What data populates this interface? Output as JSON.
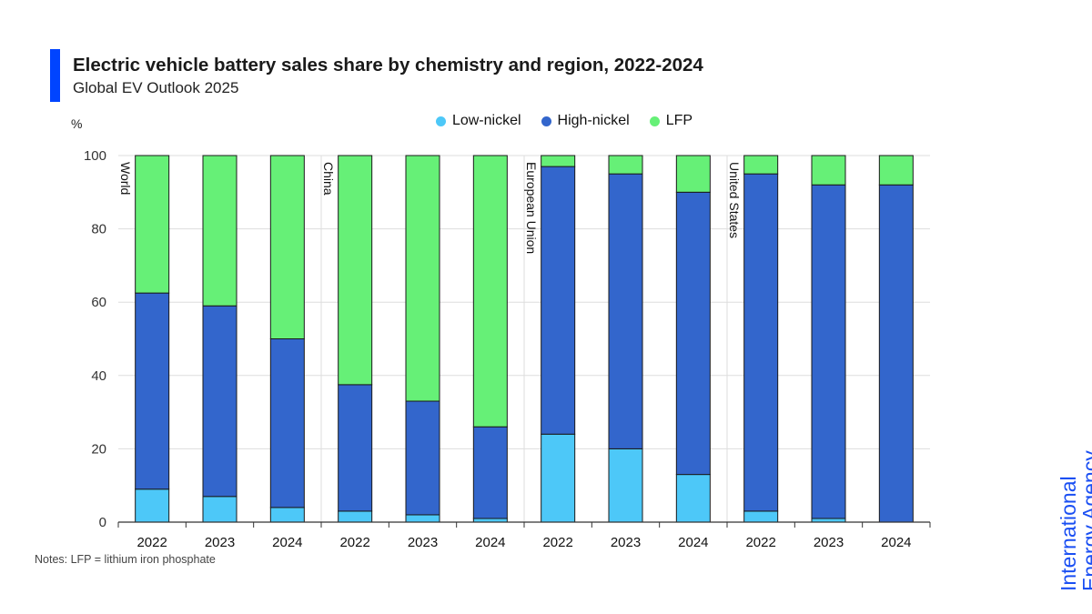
{
  "header": {
    "title": "Electric vehicle battery sales share by chemistry and region, 2022-2024",
    "subtitle": "Global EV Outlook 2025",
    "accent_color": "#0044ff"
  },
  "note": "Notes: LFP = lithium iron phosphate",
  "logo": {
    "line1": "International",
    "line2": "Energy Agency",
    "color": "#1a4ff3"
  },
  "chart_data": {
    "type": "bar",
    "stacked": true,
    "unit": "%",
    "ylim": [
      0,
      100
    ],
    "yticks": [
      0,
      20,
      40,
      60,
      80,
      100
    ],
    "grid": true,
    "legend_position": "top-center",
    "groups": [
      {
        "name": "World",
        "categories": [
          "2022",
          "2023",
          "2024"
        ]
      },
      {
        "name": "China",
        "categories": [
          "2022",
          "2023",
          "2024"
        ]
      },
      {
        "name": "European Union",
        "categories": [
          "2022",
          "2023",
          "2024"
        ]
      },
      {
        "name": "United States",
        "categories": [
          "2022",
          "2023",
          "2024"
        ]
      }
    ],
    "series": [
      {
        "name": "Low-nickel",
        "color": "#4dc8f8",
        "values": [
          9,
          7,
          4,
          3,
          2,
          1,
          24,
          20,
          13,
          3,
          1,
          0
        ]
      },
      {
        "name": "High-nickel",
        "color": "#3366cc",
        "values": [
          53.5,
          52,
          46,
          34.5,
          31,
          25,
          73,
          75,
          77,
          92,
          91,
          92
        ]
      },
      {
        "name": "LFP",
        "color": "#66f077",
        "values": [
          37.5,
          41,
          50,
          62.5,
          67,
          74,
          3,
          5,
          10,
          5,
          8,
          8
        ]
      }
    ]
  }
}
